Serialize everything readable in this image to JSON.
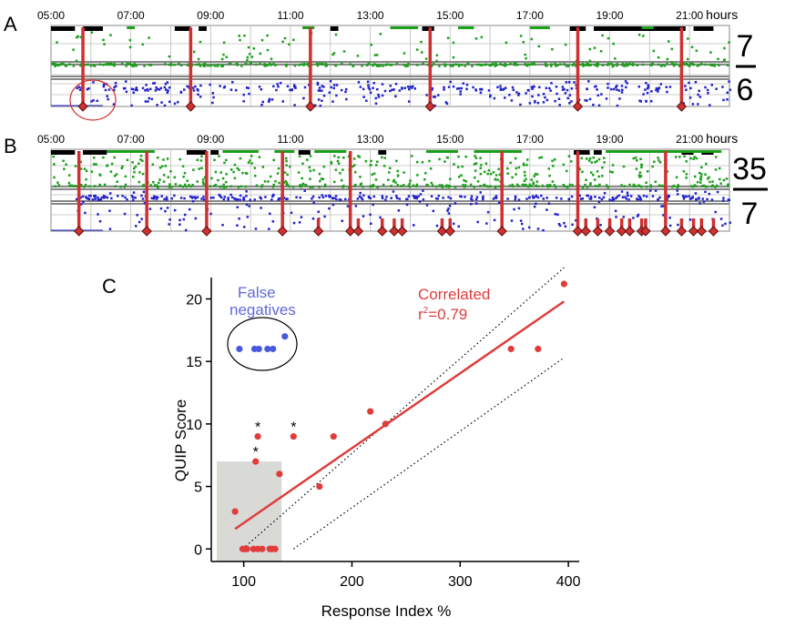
{
  "chart_data": [
    {
      "panel_label": "A",
      "type": "scatter",
      "time_ticks": [
        "05:00",
        "07:00",
        "09:00",
        "11:00",
        "13:00",
        "15:00",
        "17:00",
        "19:00",
        "21:00"
      ],
      "time_unit": "hours",
      "x_range_hours": [
        5,
        22
      ],
      "event_markers_hours": [
        5.8,
        8.5,
        11.5,
        14.5,
        18.2,
        20.8
      ],
      "ratio_numerator": "7",
      "ratio_denominator": "6",
      "colors": {
        "upper_points": "#1aa01a",
        "lower_points": "#2222cc",
        "markers": "#d03030",
        "bars": "#000000"
      }
    },
    {
      "panel_label": "B",
      "type": "scatter",
      "time_ticks": [
        "05:00",
        "07:00",
        "09:00",
        "11:00",
        "13:00",
        "15:00",
        "17:00",
        "19:00",
        "21:00"
      ],
      "time_unit": "hours",
      "x_range_hours": [
        5,
        22
      ],
      "event_markers_hours": [
        5.7,
        7.4,
        8.9,
        10.8,
        11.7,
        12.5,
        12.7,
        13.3,
        13.6,
        13.8,
        14.8,
        15.0,
        16.3,
        18.2,
        18.4,
        18.7,
        19.0,
        19.3,
        19.5,
        19.8,
        19.9,
        20.4,
        20.8,
        21.1,
        21.3,
        21.6
      ],
      "ratio_numerator": "35",
      "ratio_denominator": "7",
      "colors": {
        "upper_points": "#1aa01a",
        "lower_points": "#2222cc",
        "markers": "#d03030",
        "bars": "#000000"
      }
    },
    {
      "panel_label": "C",
      "type": "scatter",
      "xlabel": "Response Index %",
      "ylabel": "QUIP Score",
      "xlim": [
        70,
        410
      ],
      "ylim": [
        -1,
        22
      ],
      "x_ticks": [
        100,
        200,
        300,
        400
      ],
      "y_ticks": [
        0,
        5,
        10,
        15,
        20
      ],
      "series": [
        {
          "name": "Correlated",
          "color": "#e03c3c",
          "points": [
            [
              92,
              3
            ],
            [
              99,
              0
            ],
            [
              101,
              0
            ],
            [
              103,
              0
            ],
            [
              109,
              0
            ],
            [
              111,
              7
            ],
            [
              113,
              0
            ],
            [
              113,
              9
            ],
            [
              117,
              0
            ],
            [
              124,
              0
            ],
            [
              126,
              0
            ],
            [
              129,
              0
            ],
            [
              133,
              6
            ],
            [
              146,
              9
            ],
            [
              170,
              5
            ],
            [
              183,
              9
            ],
            [
              217,
              11
            ],
            [
              231,
              10
            ],
            [
              347,
              16
            ],
            [
              372,
              16
            ],
            [
              396,
              21.2
            ]
          ]
        },
        {
          "name": "False negatives",
          "color": "#4a5ae0",
          "points": [
            [
              96,
              16
            ],
            [
              110,
              16
            ],
            [
              114,
              16
            ],
            [
              122,
              16
            ],
            [
              127,
              16
            ],
            [
              138,
              17
            ]
          ]
        }
      ],
      "regression": {
        "x": [
          92,
          396
        ],
        "y": [
          1.6,
          19.8
        ],
        "color": "#e03c3c"
      },
      "confidence_band": {
        "upper": [
          [
            99,
            0
          ],
          [
            396,
            22.5
          ]
        ],
        "lower": [
          [
            146,
            0
          ],
          [
            396,
            15.3
          ]
        ]
      },
      "shaded_region": {
        "x": [
          75,
          135
        ],
        "y": [
          -1,
          7
        ]
      },
      "asterisks": [
        [
          113,
          9
        ],
        [
          111,
          7
        ],
        [
          146,
          9
        ]
      ],
      "asterisk_symbol": "*",
      "annotation_correlated": "Correlated",
      "annotation_r2_prefix": "r",
      "annotation_r2_sup": "2",
      "annotation_r2_value": "=0.79",
      "annotation_false_line1": "False",
      "annotation_false_line2": "negatives"
    }
  ]
}
